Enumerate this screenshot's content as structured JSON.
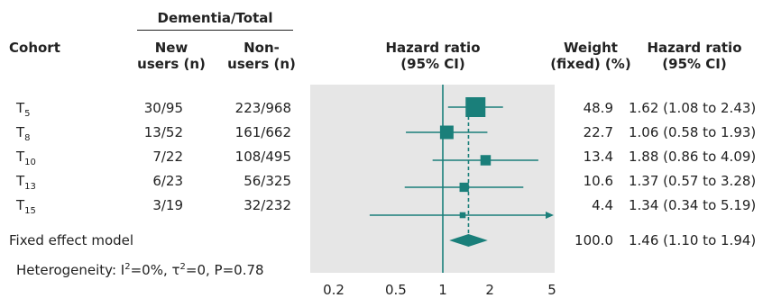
{
  "header": {
    "group_label": "Dementia/Total",
    "cohort": "Cohort",
    "new_users": [
      "New",
      "users (n)"
    ],
    "non_users": [
      "Non-",
      "users (n)"
    ],
    "hazard_ratio_plot": [
      "Hazard ratio",
      "(95% CI)"
    ],
    "weight": [
      "Weight",
      "(fixed) (%)"
    ],
    "hazard_ratio_text": [
      "Hazard ratio",
      "(95% CI)"
    ]
  },
  "rows": [
    {
      "cohort": "T",
      "sub": "5",
      "new_users": "30/95",
      "non_users": "223/968",
      "weight": "48.9",
      "hr_text": "1.62 (1.08 to 2.43)"
    },
    {
      "cohort": "T",
      "sub": "8",
      "new_users": "13/52",
      "non_users": "161/662",
      "weight": "22.7",
      "hr_text": "1.06 (0.58 to 1.93)"
    },
    {
      "cohort": "T",
      "sub": "10",
      "new_users": "7/22",
      "non_users": "108/495",
      "weight": "13.4",
      "hr_text": "1.88 (0.86 to 4.09)"
    },
    {
      "cohort": "T",
      "sub": "13",
      "new_users": "6/23",
      "non_users": "56/325",
      "weight": "10.6",
      "hr_text": "1.37 (0.57 to 3.28)"
    },
    {
      "cohort": "T",
      "sub": "15",
      "new_users": "3/19",
      "non_users": "32/232",
      "weight": "4.4",
      "hr_text": "1.34 (0.34 to 5.19)"
    }
  ],
  "summary": {
    "label": "Fixed effect model",
    "weight": "100.0",
    "hr_text": "1.46 (1.10 to 1.94)"
  },
  "heterogeneity": {
    "prefix": "Heterogeneity: I",
    "i2_sup": "2",
    "i2_value": "=0%, τ",
    "tau_sup": "2",
    "tail": "=0, P=0.78"
  },
  "chart_data": {
    "type": "forest",
    "scale": "log",
    "xlim": [
      0.2,
      5
    ],
    "xticks": [
      0.2,
      0.5,
      1,
      2,
      5
    ],
    "xtick_labels": [
      "0.2",
      "0.5",
      "1",
      "2",
      "5"
    ],
    "reference_line": 1,
    "studies": [
      {
        "name": "T5",
        "hr": 1.62,
        "lower": 1.08,
        "upper": 2.43,
        "weight": 48.9
      },
      {
        "name": "T8",
        "hr": 1.06,
        "lower": 0.58,
        "upper": 1.93,
        "weight": 22.7
      },
      {
        "name": "T10",
        "hr": 1.88,
        "lower": 0.86,
        "upper": 4.09,
        "weight": 13.4
      },
      {
        "name": "T13",
        "hr": 1.37,
        "lower": 0.57,
        "upper": 3.28,
        "weight": 10.6
      },
      {
        "name": "T15",
        "hr": 1.34,
        "lower": 0.34,
        "upper": 5.19,
        "weight": 4.4
      }
    ],
    "pooled": {
      "hr": 1.46,
      "lower": 1.1,
      "upper": 1.94
    },
    "colors": {
      "marker": "#1a7f7a",
      "panel": "#e6e6e6",
      "reference": "#1a7f7a"
    }
  }
}
